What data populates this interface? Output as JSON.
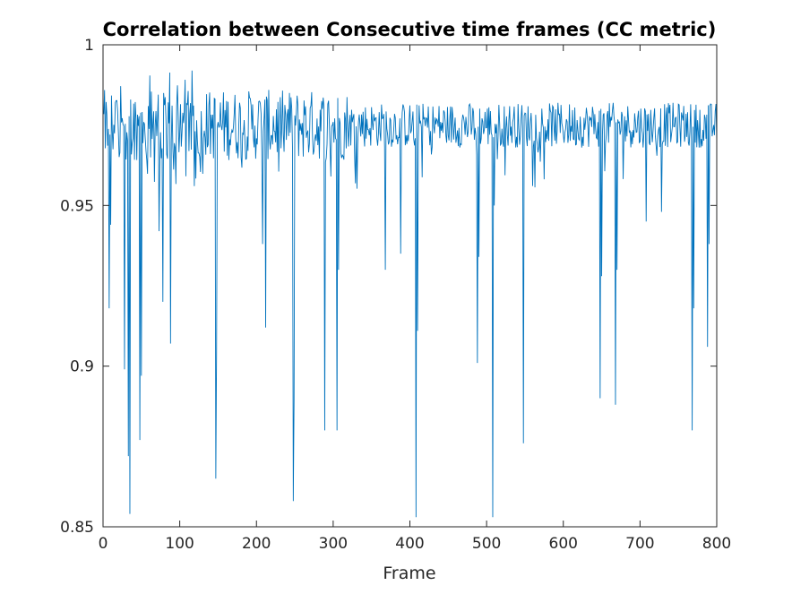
{
  "chart_data": {
    "type": "line",
    "title": "Correlation between Consecutive time frames (CC metric)",
    "xlabel": "Frame",
    "ylabel": "",
    "xlim": [
      0,
      800
    ],
    "ylim": [
      0.85,
      1.0
    ],
    "x_ticks": [
      0,
      100,
      200,
      300,
      400,
      500,
      600,
      700,
      800
    ],
    "y_ticks": [
      0.85,
      0.9,
      0.95,
      1.0
    ],
    "x_tick_labels": [
      "0",
      "100",
      "200",
      "300",
      "400",
      "500",
      "600",
      "700",
      "800"
    ],
    "y_tick_labels": [
      "0.85",
      "0.9",
      "0.95",
      "1"
    ],
    "grid": false,
    "box": true,
    "series": [
      {
        "color": "#0072BD",
        "n_points": 800,
        "baseline": 0.975,
        "dips": [
          {
            "x": 8,
            "y": 0.918
          },
          {
            "x": 10,
            "y": 0.944
          },
          {
            "x": 28,
            "y": 0.899
          },
          {
            "x": 33,
            "y": 0.872
          },
          {
            "x": 35,
            "y": 0.854
          },
          {
            "x": 48,
            "y": 0.877
          },
          {
            "x": 50,
            "y": 0.897
          },
          {
            "x": 73,
            "y": 0.942
          },
          {
            "x": 78,
            "y": 0.92
          },
          {
            "x": 88,
            "y": 0.907
          },
          {
            "x": 147,
            "y": 0.865
          },
          {
            "x": 148,
            "y": 0.904
          },
          {
            "x": 208,
            "y": 0.938
          },
          {
            "x": 212,
            "y": 0.912
          },
          {
            "x": 248,
            "y": 0.858
          },
          {
            "x": 249,
            "y": 0.889
          },
          {
            "x": 289,
            "y": 0.88
          },
          {
            "x": 305,
            "y": 0.88
          },
          {
            "x": 307,
            "y": 0.93
          },
          {
            "x": 368,
            "y": 0.93
          },
          {
            "x": 388,
            "y": 0.935
          },
          {
            "x": 408,
            "y": 0.853
          },
          {
            "x": 410,
            "y": 0.911
          },
          {
            "x": 488,
            "y": 0.901
          },
          {
            "x": 490,
            "y": 0.934
          },
          {
            "x": 508,
            "y": 0.853
          },
          {
            "x": 510,
            "y": 0.95
          },
          {
            "x": 548,
            "y": 0.876
          },
          {
            "x": 648,
            "y": 0.89
          },
          {
            "x": 650,
            "y": 0.928
          },
          {
            "x": 668,
            "y": 0.888
          },
          {
            "x": 670,
            "y": 0.93
          },
          {
            "x": 708,
            "y": 0.945
          },
          {
            "x": 728,
            "y": 0.948
          },
          {
            "x": 768,
            "y": 0.88
          },
          {
            "x": 770,
            "y": 0.918
          },
          {
            "x": 788,
            "y": 0.906
          },
          {
            "x": 790,
            "y": 0.938
          }
        ]
      }
    ]
  }
}
